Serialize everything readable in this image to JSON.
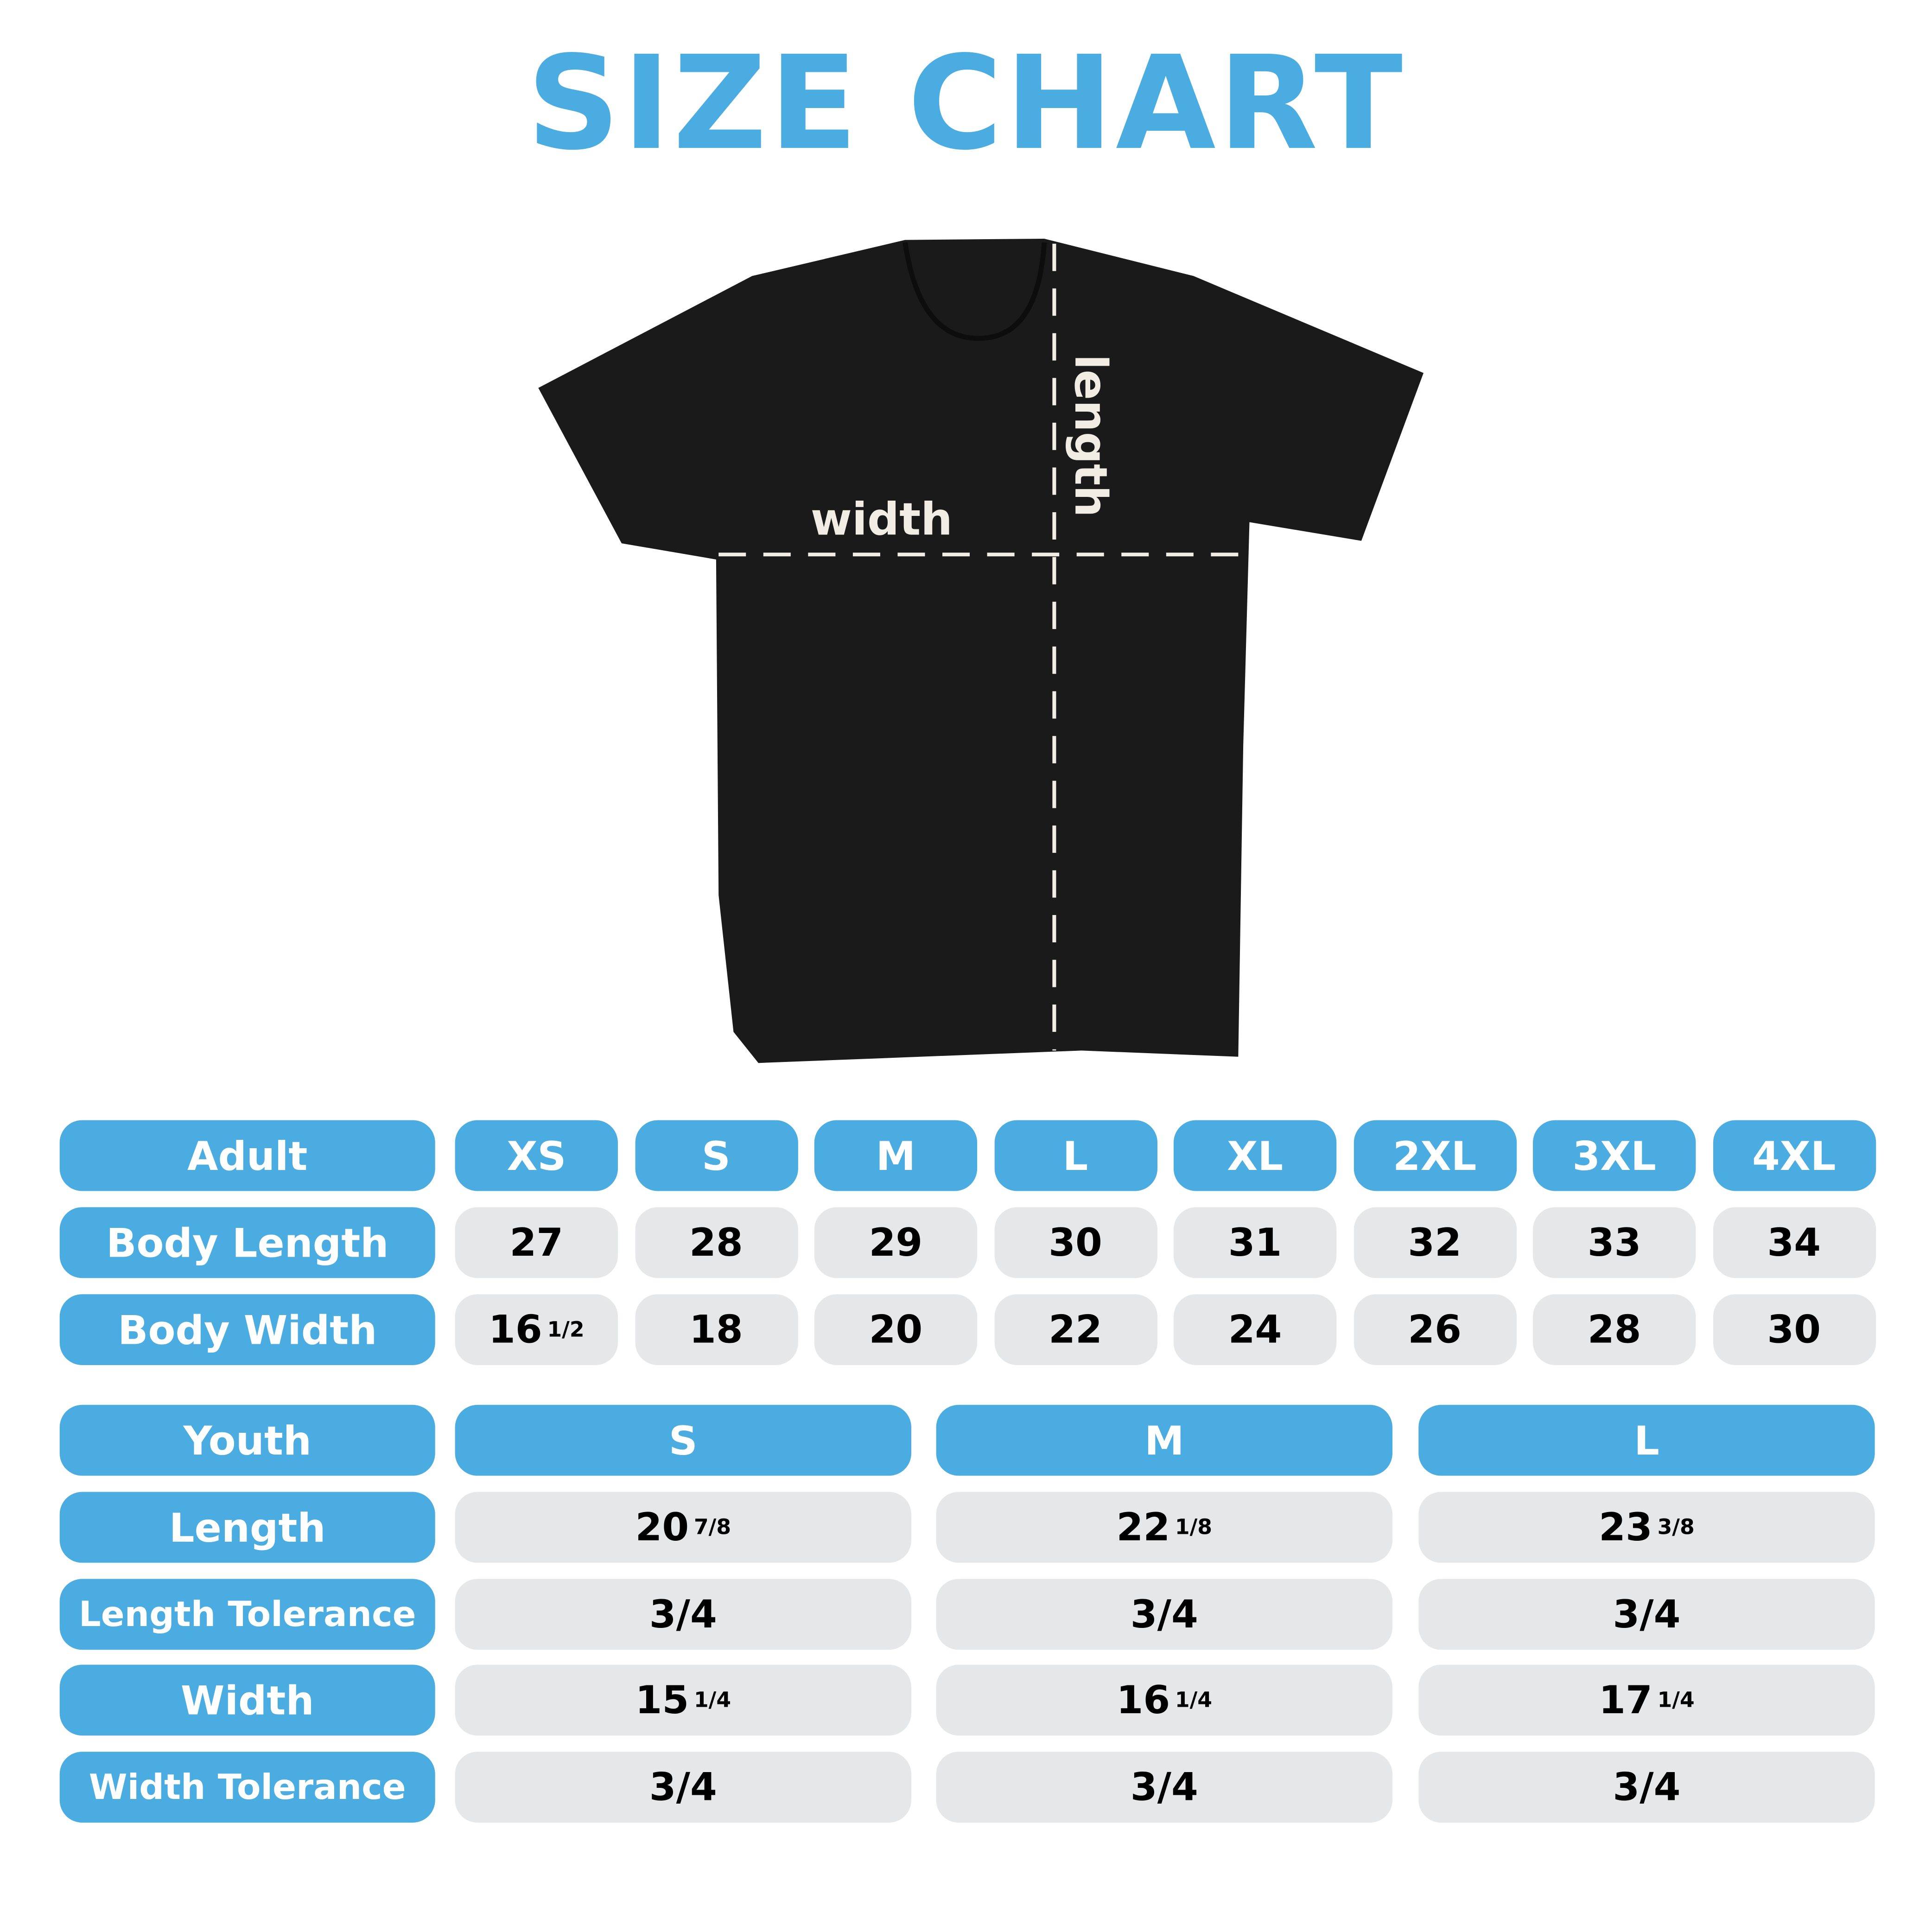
{
  "title": "SIZE CHART",
  "colors": {
    "accent": "#4aace0",
    "cell_bg": "#e6e7e8",
    "shirt": "#1a1a1a"
  },
  "shirt_labels": {
    "width": "width",
    "length": "length"
  },
  "adult": {
    "header": "Adult",
    "sizes": [
      "XS",
      "S",
      "M",
      "L",
      "XL",
      "2XL",
      "3XL",
      "4XL"
    ],
    "rows": [
      {
        "label": "Body Length",
        "values": [
          {
            "whole": "27",
            "frac": ""
          },
          {
            "whole": "28",
            "frac": ""
          },
          {
            "whole": "29",
            "frac": ""
          },
          {
            "whole": "30",
            "frac": ""
          },
          {
            "whole": "31",
            "frac": ""
          },
          {
            "whole": "32",
            "frac": ""
          },
          {
            "whole": "33",
            "frac": ""
          },
          {
            "whole": "34",
            "frac": ""
          }
        ]
      },
      {
        "label": "Body Width",
        "values": [
          {
            "whole": "16",
            "frac": "1/2"
          },
          {
            "whole": "18",
            "frac": ""
          },
          {
            "whole": "20",
            "frac": ""
          },
          {
            "whole": "22",
            "frac": ""
          },
          {
            "whole": "24",
            "frac": ""
          },
          {
            "whole": "26",
            "frac": ""
          },
          {
            "whole": "28",
            "frac": ""
          },
          {
            "whole": "30",
            "frac": ""
          }
        ]
      }
    ]
  },
  "youth": {
    "header": "Youth",
    "sizes": [
      "S",
      "M",
      "L"
    ],
    "rows": [
      {
        "label": "Length",
        "values": [
          {
            "whole": "20",
            "frac": "7/8"
          },
          {
            "whole": "22",
            "frac": "1/8"
          },
          {
            "whole": "23",
            "frac": "3/8"
          }
        ]
      },
      {
        "label": "Length Tolerance",
        "values": [
          {
            "whole": "3/4",
            "frac": ""
          },
          {
            "whole": "3/4",
            "frac": ""
          },
          {
            "whole": "3/4",
            "frac": ""
          }
        ]
      },
      {
        "label": "Width",
        "values": [
          {
            "whole": "15",
            "frac": "1/4"
          },
          {
            "whole": "16",
            "frac": "1/4"
          },
          {
            "whole": "17",
            "frac": "1/4"
          }
        ]
      },
      {
        "label": "Width Tolerance",
        "values": [
          {
            "whole": "3/4",
            "frac": ""
          },
          {
            "whole": "3/4",
            "frac": ""
          },
          {
            "whole": "3/4",
            "frac": ""
          }
        ]
      }
    ]
  }
}
